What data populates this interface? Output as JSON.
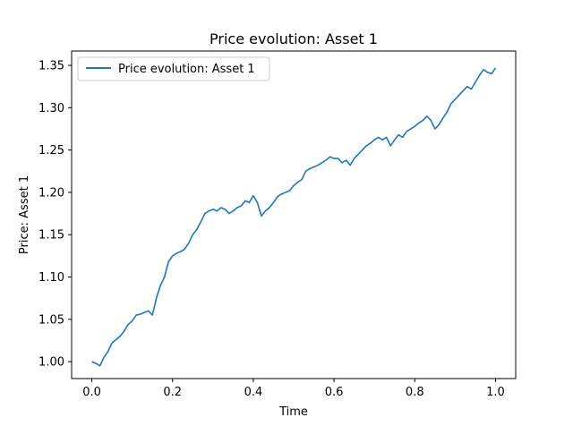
{
  "chart_data": {
    "type": "line",
    "title": "Price evolution: Asset 1",
    "xlabel": "Time",
    "ylabel": "Price: Asset 1",
    "xlim": [
      -0.05,
      1.05
    ],
    "ylim": [
      0.98,
      1.367
    ],
    "xticks": [
      "0.0",
      "0.2",
      "0.4",
      "0.6",
      "0.8",
      "1.0"
    ],
    "yticks": [
      "1.00",
      "1.05",
      "1.10",
      "1.15",
      "1.20",
      "1.25",
      "1.30",
      "1.35"
    ],
    "legend_position": "top-left",
    "grid": false,
    "series": [
      {
        "name": "Price evolution: Asset 1",
        "color": "#1f77b4",
        "x": [
          0.0,
          0.01,
          0.02,
          0.03,
          0.04,
          0.05,
          0.06,
          0.07,
          0.08,
          0.09,
          0.1,
          0.11,
          0.12,
          0.13,
          0.14,
          0.15,
          0.16,
          0.17,
          0.18,
          0.19,
          0.2,
          0.21,
          0.22,
          0.23,
          0.24,
          0.25,
          0.26,
          0.27,
          0.28,
          0.29,
          0.3,
          0.31,
          0.32,
          0.33,
          0.34,
          0.35,
          0.36,
          0.37,
          0.38,
          0.39,
          0.4,
          0.41,
          0.42,
          0.43,
          0.44,
          0.45,
          0.46,
          0.47,
          0.48,
          0.49,
          0.5,
          0.51,
          0.52,
          0.53,
          0.54,
          0.55,
          0.56,
          0.57,
          0.58,
          0.59,
          0.6,
          0.61,
          0.62,
          0.63,
          0.64,
          0.65,
          0.66,
          0.67,
          0.68,
          0.69,
          0.7,
          0.71,
          0.72,
          0.73,
          0.74,
          0.75,
          0.76,
          0.77,
          0.78,
          0.79,
          0.8,
          0.81,
          0.82,
          0.83,
          0.84,
          0.85,
          0.86,
          0.87,
          0.88,
          0.89,
          0.9,
          0.91,
          0.92,
          0.93,
          0.94,
          0.95,
          0.96,
          0.97,
          0.98,
          0.99,
          1.0
        ],
        "values": [
          1.0,
          0.998,
          0.995,
          1.005,
          1.012,
          1.022,
          1.026,
          1.03,
          1.036,
          1.044,
          1.048,
          1.055,
          1.056,
          1.058,
          1.06,
          1.055,
          1.075,
          1.09,
          1.1,
          1.118,
          1.125,
          1.128,
          1.13,
          1.133,
          1.14,
          1.15,
          1.156,
          1.165,
          1.175,
          1.178,
          1.18,
          1.178,
          1.182,
          1.18,
          1.175,
          1.178,
          1.182,
          1.184,
          1.19,
          1.188,
          1.196,
          1.188,
          1.172,
          1.178,
          1.182,
          1.188,
          1.195,
          1.198,
          1.2,
          1.202,
          1.208,
          1.212,
          1.215,
          1.225,
          1.228,
          1.23,
          1.232,
          1.235,
          1.238,
          1.242,
          1.24,
          1.24,
          1.235,
          1.238,
          1.232,
          1.24,
          1.245,
          1.25,
          1.255,
          1.258,
          1.262,
          1.265,
          1.262,
          1.265,
          1.255,
          1.262,
          1.268,
          1.265,
          1.272,
          1.275,
          1.278,
          1.282,
          1.285,
          1.29,
          1.285,
          1.275,
          1.28,
          1.288,
          1.295,
          1.305,
          1.31,
          1.315,
          1.32,
          1.325,
          1.322,
          1.33,
          1.338,
          1.345,
          1.342,
          1.34,
          1.347
        ]
      }
    ]
  }
}
